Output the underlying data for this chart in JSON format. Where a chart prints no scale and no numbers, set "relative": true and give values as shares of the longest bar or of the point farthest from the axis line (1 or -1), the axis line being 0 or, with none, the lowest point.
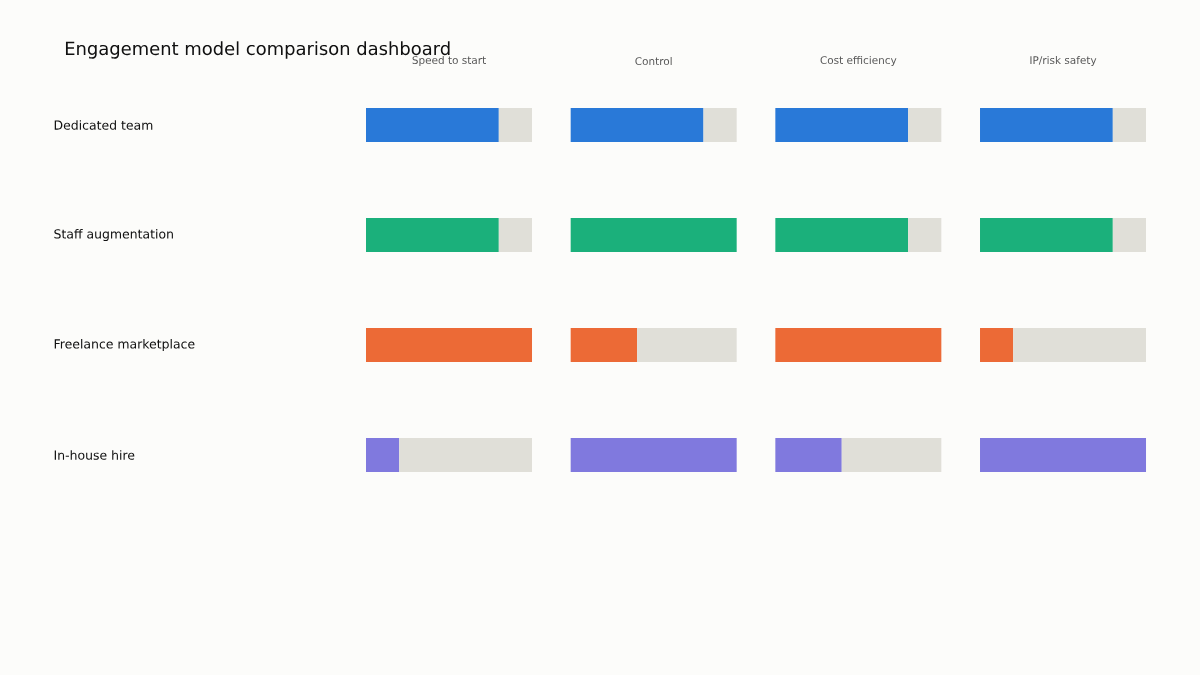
{
  "chart_data": [
    {
      "type": "other",
      "title": "Engagement model comparison dashboard"
    },
    {
      "type": "bar",
      "orientation": "horizontal",
      "stacked": true,
      "relative": true,
      "tick_labels": "y",
      "title": "Speed to start",
      "categories": [
        "Dedicated team",
        "Staff augmentation",
        "Freelance marketplace",
        "In-house hire"
      ],
      "series": [
        {
          "values": [
            0.8,
            0.8,
            1,
            0.2
          ],
          "colors": [
            "#2979d8",
            "#1bb07b",
            "#ec6a36",
            "#8079de"
          ]
        },
        {
          "values": [
            0.2,
            0.2,
            0,
            0.8
          ],
          "color": "#e0dfd8"
        }
      ]
    },
    {
      "type": "bar",
      "orientation": "horizontal",
      "stacked": true,
      "relative": true,
      "title": "Control",
      "categories": [
        null,
        null,
        null,
        null
      ],
      "series": [
        {
          "values": [
            0.8,
            1,
            0.4,
            1
          ],
          "colors": [
            "#2979d8",
            "#1bb07b",
            "#ec6a36",
            "#8079de"
          ]
        },
        {
          "values": [
            0.2,
            0,
            0.6,
            0
          ],
          "color": "#e0dfd8"
        }
      ]
    },
    {
      "type": "bar",
      "orientation": "horizontal",
      "stacked": true,
      "relative": true,
      "title": "Cost efficiency",
      "categories": [
        null,
        null,
        null,
        null
      ],
      "series": [
        {
          "values": [
            0.8,
            0.8,
            1,
            0.4
          ],
          "colors": [
            "#2979d8",
            "#1bb07b",
            "#ec6a36",
            "#8079de"
          ]
        },
        {
          "values": [
            0.2,
            0.2,
            0,
            0.6
          ],
          "color": "#e0dfd8"
        }
      ]
    },
    {
      "type": "bar",
      "orientation": "horizontal",
      "stacked": true,
      "relative": true,
      "title": "IP/risk safety",
      "categories": [
        null,
        null,
        null,
        null
      ],
      "series": [
        {
          "values": [
            0.8,
            0.8,
            0.2,
            1
          ],
          "colors": [
            "#2979d8",
            "#1bb07b",
            "#ec6a36",
            "#8079de"
          ]
        },
        {
          "values": [
            0.2,
            0.2,
            0.8,
            0
          ],
          "color": "#e0dfd8"
        }
      ]
    }
  ]
}
